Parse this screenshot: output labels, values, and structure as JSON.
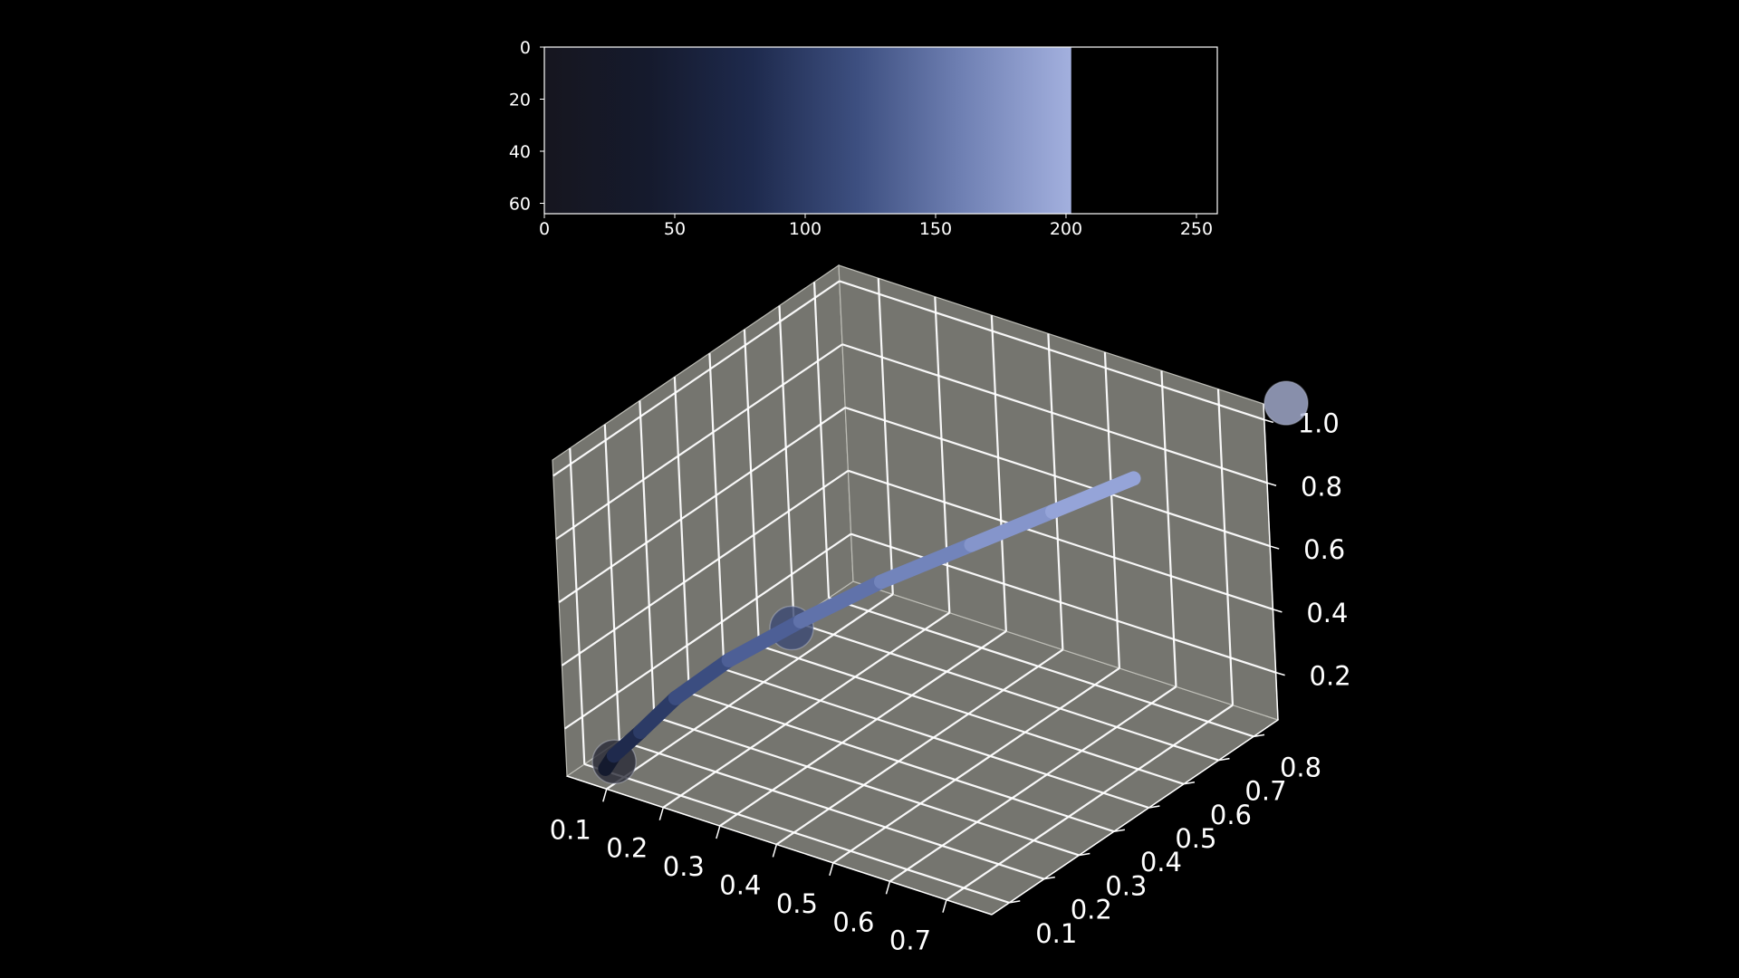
{
  "chart_data": [
    {
      "type": "heatmap",
      "title": "",
      "xlabel": "",
      "ylabel": "",
      "width": 202,
      "height": 64,
      "xlim": [
        0,
        258
      ],
      "ylim": [
        64,
        0
      ],
      "xticks": [
        0,
        50,
        100,
        150,
        200,
        250
      ],
      "yticks": [
        0,
        20,
        40,
        60
      ],
      "gradient_stops": [
        {
          "x": 0,
          "color": "#16161f"
        },
        {
          "x": 40,
          "color": "#151a2d"
        },
        {
          "x": 80,
          "color": "#1e2a4d"
        },
        {
          "x": 120,
          "color": "#3d4f80"
        },
        {
          "x": 160,
          "color": "#6f80b3"
        },
        {
          "x": 202,
          "color": "#a3b0de"
        }
      ],
      "empty_color": "#000000"
    },
    {
      "type": "line",
      "projection": "3d",
      "title": "",
      "xlabel": "",
      "ylabel": "",
      "zlabel": "",
      "grid": true,
      "pane_color": "#7b7b75",
      "xticks": [
        0.1,
        0.2,
        0.3,
        0.4,
        0.5,
        0.6,
        0.7
      ],
      "yticks": [
        0.1,
        0.2,
        0.3,
        0.4,
        0.5,
        0.6,
        0.7,
        0.8
      ],
      "zticks": [
        0.2,
        0.4,
        0.6,
        0.8,
        1.0
      ],
      "xlim": [
        0.03,
        0.78
      ],
      "ylim": [
        0.05,
        0.87
      ],
      "zlim": [
        0.05,
        1.05
      ],
      "series": [
        {
          "x": [
            0.08,
            0.09,
            0.12,
            0.16,
            0.22,
            0.3,
            0.39,
            0.49,
            0.58,
            0.67
          ],
          "y": [
            0.08,
            0.09,
            0.12,
            0.16,
            0.22,
            0.3,
            0.39,
            0.49,
            0.58,
            0.67
          ],
          "z": [
            0.08,
            0.12,
            0.19,
            0.29,
            0.4,
            0.51,
            0.62,
            0.72,
            0.81,
            0.9
          ],
          "colors": [
            "#0d0f18",
            "#141a2e",
            "#1f2a4d",
            "#2c3b66",
            "#3b4d80",
            "#4d5f96",
            "#6072aa",
            "#7284bb",
            "#8595cb",
            "#95a4d8"
          ]
        }
      ],
      "points": [
        {
          "x": 0.09,
          "y": 0.09,
          "z": 0.1,
          "color": "#2a2c38"
        },
        {
          "x": 0.29,
          "y": 0.29,
          "z": 0.49,
          "color": "#3c4a74"
        },
        {
          "x": 0.84,
          "y": 0.84,
          "z": 1.11,
          "color": "#aab3d6"
        }
      ]
    }
  ]
}
